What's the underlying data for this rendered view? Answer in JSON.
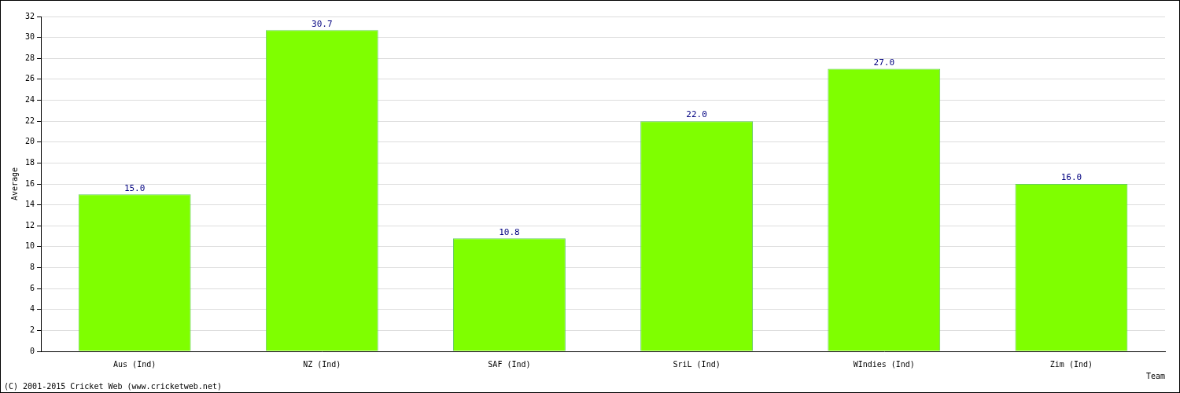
{
  "chart_data": {
    "type": "bar",
    "categories": [
      "Aus (Ind)",
      "NZ (Ind)",
      "SAF (Ind)",
      "SriL (Ind)",
      "WIndies (Ind)",
      "Zim (Ind)"
    ],
    "values": [
      15.0,
      30.7,
      10.8,
      22.0,
      27.0,
      16.0
    ],
    "value_labels": [
      "15.0",
      "30.7",
      "10.8",
      "22.0",
      "27.0",
      "16.0"
    ],
    "data_labels": true,
    "color": "#7fff00",
    "x_label": "Team",
    "y_label": "Average",
    "ylim": [
      0,
      32
    ],
    "yticks": [
      0,
      2,
      4,
      6,
      8,
      10,
      12,
      14,
      16,
      18,
      20,
      22,
      24,
      26,
      28,
      30,
      32
    ],
    "grid": true,
    "annotations": [
      "(C) 2001-2015 Cricket Web (www.cricketweb.net)"
    ]
  }
}
